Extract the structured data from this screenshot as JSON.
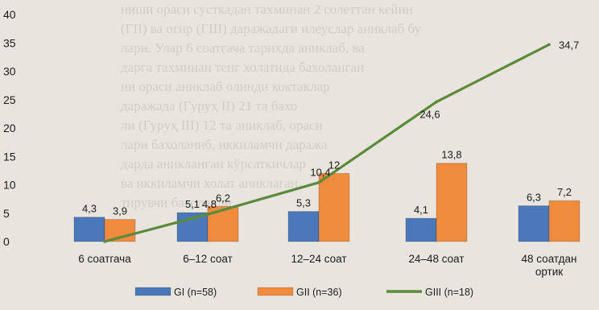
{
  "chart_data": {
    "type": "bar",
    "categories": [
      "6 соатгача",
      "6–12 соат",
      "12–24 соат",
      "24–48 соат",
      "48 соатдан ортик"
    ],
    "category_lines": [
      [
        "6 соатгача"
      ],
      [
        "6–12 соат"
      ],
      [
        "12–24 соат"
      ],
      [
        "24–48 соат"
      ],
      [
        "48 соатдан",
        "ортик"
      ]
    ],
    "series": [
      {
        "name": "GI (n=58)",
        "kind": "bar",
        "color": "#4a78b8",
        "values": [
          4.3,
          5.1,
          5.3,
          4.1,
          6.3
        ],
        "labels": [
          "4,3",
          "5,1",
          "5,3",
          "4,1",
          "6,3"
        ]
      },
      {
        "name": "GII (n=36)",
        "kind": "bar",
        "color": "#f08a3c",
        "values": [
          3.9,
          6.2,
          12,
          13.8,
          7.2
        ],
        "labels": [
          "3,9",
          "6,2",
          "12",
          "13,8",
          "7,2"
        ]
      },
      {
        "name": "GIII (n=18)",
        "kind": "line",
        "color": "#5b8a3a",
        "values": [
          0,
          4.8,
          10.4,
          24.6,
          34.7
        ],
        "labels": [
          "",
          "4,8",
          "10,4",
          "24,6",
          "34,7"
        ]
      }
    ],
    "ylim": [
      0,
      40
    ],
    "yticks": [
      0,
      5,
      10,
      15,
      20,
      25,
      30,
      35,
      40
    ],
    "legend": "bottom",
    "grid": false
  }
}
